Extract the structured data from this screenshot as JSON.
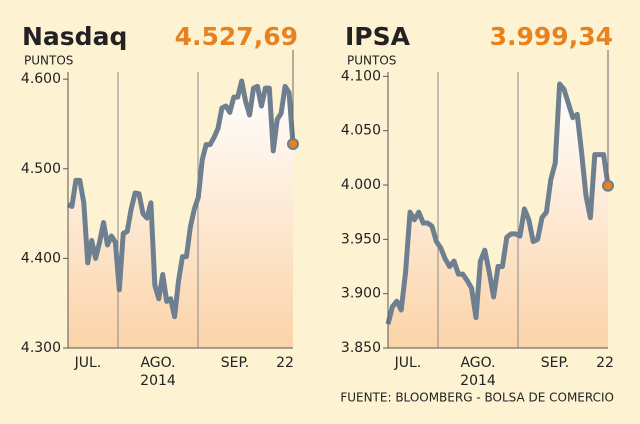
{
  "chart_data": [
    {
      "type": "line",
      "title": "Nasdaq",
      "headline": "4.527,69",
      "axis_label": "PUNTOS",
      "x_labels": [
        "JUL.",
        "AGO.",
        "SEP.",
        "22"
      ],
      "x_sublabel": "2014",
      "series": [
        {
          "name": "Nasdaq",
          "color": "#6e7f8f",
          "values": [
            4460,
            4458,
            4487,
            4487,
            4462,
            4395,
            4420,
            4400,
            4418,
            4440,
            4415,
            4425,
            4418,
            4365,
            4428,
            4430,
            4455,
            4473,
            4472,
            4450,
            4445,
            4462,
            4370,
            4355,
            4382,
            4352,
            4355,
            4335,
            4375,
            4402,
            4402,
            4435,
            4455,
            4468,
            4510,
            4527,
            4527,
            4535,
            4545,
            4568,
            4570,
            4563,
            4580,
            4580,
            4598,
            4575,
            4560,
            4590,
            4592,
            4570,
            4590,
            4590,
            4520,
            4555,
            4562,
            4592,
            4585,
            4527.69
          ]
        }
      ],
      "ylim": [
        4300,
        4608
      ],
      "yticks": [
        {
          "value": 4300,
          "label": "4.300"
        },
        {
          "value": 4400,
          "label": "4.400"
        },
        {
          "value": 4500,
          "label": "4.500"
        },
        {
          "value": 4600,
          "label": "4.600"
        }
      ],
      "highlight_color": "#e8821e"
    },
    {
      "type": "line",
      "title": "IPSA",
      "headline": "3.999,34",
      "axis_label": "PUNTOS",
      "x_labels": [
        "JUL.",
        "AGO.",
        "SEP.",
        "22"
      ],
      "x_sublabel": "2014",
      "series": [
        {
          "name": "IPSA",
          "color": "#6e7f8f",
          "values": [
            3872,
            3888,
            3893,
            3885,
            3920,
            3975,
            3968,
            3975,
            3965,
            3965,
            3962,
            3948,
            3942,
            3932,
            3925,
            3930,
            3918,
            3918,
            3912,
            3905,
            3878,
            3930,
            3940,
            3920,
            3897,
            3925,
            3925,
            3952,
            3955,
            3955,
            3953,
            3978,
            3968,
            3948,
            3950,
            3970,
            3975,
            4005,
            4020,
            4093,
            4088,
            4075,
            4062,
            4065,
            4030,
            3990,
            3970,
            4028,
            4028,
            4028,
            3999.34
          ]
        }
      ],
      "ylim": [
        3850,
        4104
      ],
      "yticks": [
        {
          "value": 3850,
          "label": "3.850"
        },
        {
          "value": 3900,
          "label": "3.900"
        },
        {
          "value": 3950,
          "label": "3.950"
        },
        {
          "value": 4000,
          "label": "4.000"
        },
        {
          "value": 4050,
          "label": "4.050"
        },
        {
          "value": 4100,
          "label": "4.100"
        }
      ],
      "highlight_color": "#e8821e"
    }
  ],
  "source": "FUENTE: BLOOMBERG - BOLSA DE COMERCIO"
}
